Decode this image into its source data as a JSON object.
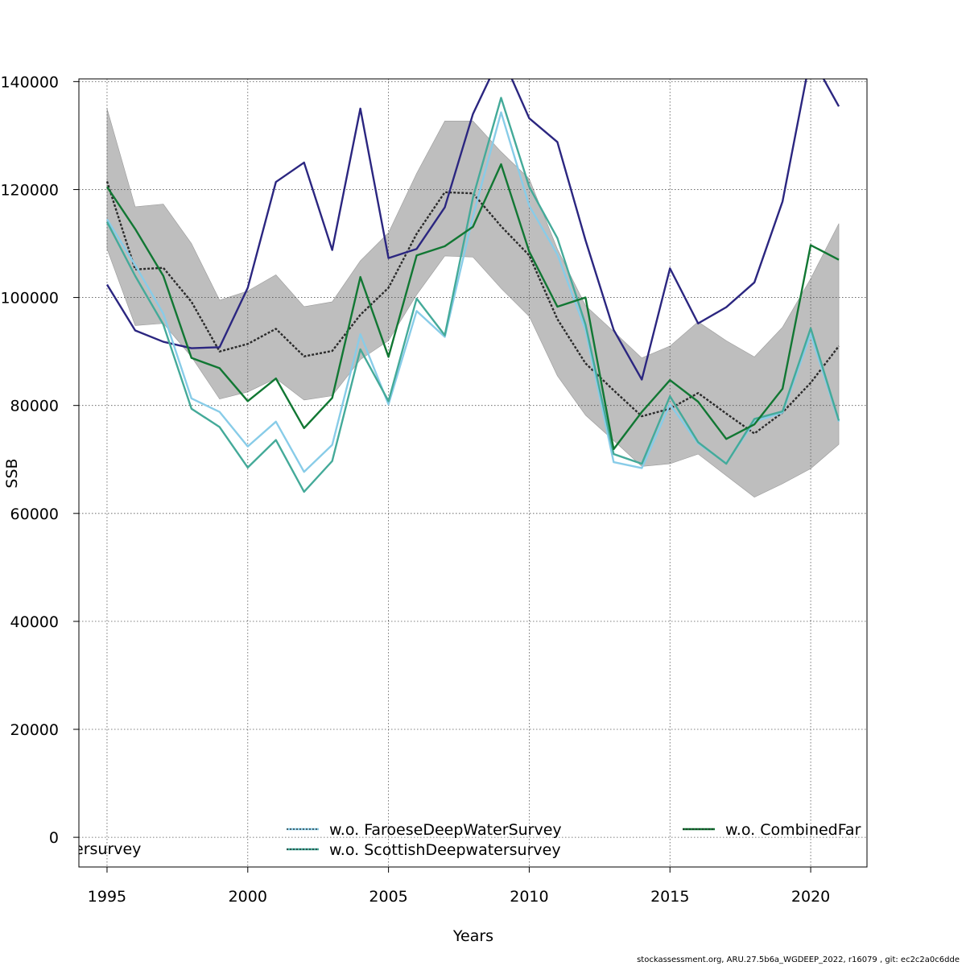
{
  "chart_data": {
    "type": "line",
    "title": "",
    "xlabel": "Years",
    "ylabel": "SSB",
    "xlim": [
      1994,
      2022
    ],
    "ylim": [
      -5500,
      140500
    ],
    "xticks": [
      1995,
      2000,
      2005,
      2010,
      2015,
      2020
    ],
    "yticks": [
      0,
      20000,
      40000,
      60000,
      80000,
      100000,
      120000,
      140000
    ],
    "grid": true,
    "x": [
      1995,
      1996,
      1997,
      1998,
      1999,
      2000,
      2001,
      2002,
      2003,
      2004,
      2005,
      2006,
      2007,
      2008,
      2009,
      2010,
      2011,
      2012,
      2013,
      2014,
      2015,
      2016,
      2017,
      2018,
      2019,
      2020,
      2021
    ],
    "band": {
      "lower": [
        109000,
        94800,
        95200,
        89000,
        81200,
        82500,
        85000,
        81000,
        81800,
        88500,
        92000,
        100500,
        107700,
        107500,
        101700,
        96500,
        85500,
        78200,
        73500,
        68700,
        69200,
        71000,
        67000,
        63000,
        65500,
        68300,
        72800
      ],
      "upper": [
        135000,
        116800,
        117300,
        110000,
        99500,
        101200,
        104200,
        98300,
        99200,
        106800,
        112000,
        123000,
        132700,
        132700,
        127000,
        122000,
        109000,
        98500,
        93700,
        88800,
        91000,
        95500,
        92000,
        89000,
        94500,
        103500,
        113700
      ],
      "color": "#bebebe"
    },
    "series": [
      {
        "name": "",
        "color": "#2b2b2b",
        "dashed": true,
        "values": [
          121500,
          105200,
          105500,
          99200,
          90000,
          91400,
          94200,
          89100,
          90100,
          96800,
          101800,
          111800,
          119500,
          119300,
          113200,
          107800,
          96000,
          87800,
          82800,
          78000,
          79400,
          82300,
          78500,
          74800,
          78700,
          84200,
          91000
        ]
      },
      {
        "name": "",
        "color": "#2b2680",
        "dashed": false,
        "values": [
          102400,
          93900,
          91800,
          90600,
          90800,
          101800,
          121400,
          125000,
          108800,
          135000,
          107300,
          109000,
          116700,
          134000,
          145000,
          133200,
          128800,
          110600,
          94000,
          84800,
          105400,
          95200,
          98200,
          102800,
          117800,
          144800,
          135400
        ]
      },
      {
        "name": "w.o. FaroeseDeepWaterSurvey",
        "color": "#88cce8",
        "dashed": false,
        "values": [
          114500,
          106000,
          97000,
          81300,
          78800,
          72400,
          77000,
          67700,
          72700,
          93200,
          80200,
          97500,
          92700,
          115000,
          134300,
          117000,
          108000,
          94000,
          69500,
          68400,
          80200,
          73000,
          69300,
          77000,
          78700,
          93200,
          77000
        ]
      },
      {
        "name": "w.o. ScottishDeepwatersurvey",
        "color": "#44aa99",
        "dashed": false,
        "values": [
          114000,
          104000,
          95000,
          79400,
          76000,
          68500,
          73600,
          64000,
          69700,
          90400,
          80800,
          99800,
          93000,
          118500,
          137000,
          120500,
          111000,
          95000,
          71000,
          69200,
          81700,
          73200,
          69200,
          77500,
          78900,
          94300,
          77200
        ]
      },
      {
        "name": "w.o. CombinedFar",
        "color": "#117733",
        "dashed": false,
        "values": [
          120500,
          112700,
          104000,
          88800,
          86900,
          80800,
          85000,
          75800,
          81400,
          103800,
          89000,
          107800,
          109500,
          113100,
          124700,
          108500,
          98300,
          100000,
          71900,
          78800,
          84700,
          80700,
          73800,
          76500,
          83100,
          109700,
          107000
        ]
      }
    ],
    "legend": {
      "placement": "bottom",
      "clipped_left_text": "ersurvey"
    }
  },
  "footer": "stockassessment.org, ARU.27.5b6a_WGDEEP_2022, r16079 , git: ec2c2a0c6dde"
}
